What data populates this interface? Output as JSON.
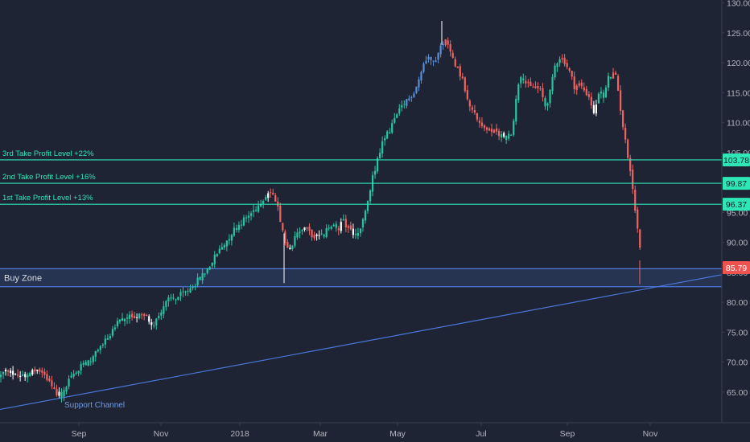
{
  "chart_data": {
    "type": "candlestick",
    "title": "",
    "y_axis": {
      "side": "right",
      "ylim": [
        61,
        131
      ],
      "ticks": [
        65,
        70,
        75,
        80,
        85,
        90,
        95,
        100,
        105,
        110,
        115,
        120,
        125,
        130
      ]
    },
    "x_axis": {
      "tick_labels": [
        "Sep",
        "Nov",
        "2018",
        "Mar",
        "May",
        "Jul",
        "Sep",
        "Nov"
      ]
    },
    "grid": false,
    "price_path": [
      [
        0,
        67.6
      ],
      [
        6,
        68.4
      ],
      [
        14,
        68.2
      ],
      [
        24,
        67.8
      ],
      [
        34,
        68.0
      ],
      [
        44,
        68.8
      ],
      [
        54,
        68.0
      ],
      [
        62,
        66.4
      ],
      [
        70,
        64.8
      ],
      [
        78,
        64.5
      ],
      [
        86,
        67.2
      ],
      [
        96,
        68.6
      ],
      [
        106,
        69.8
      ],
      [
        116,
        70.8
      ],
      [
        126,
        72.8
      ],
      [
        136,
        74.6
      ],
      [
        146,
        76.4
      ],
      [
        156,
        77.4
      ],
      [
        166,
        77.8
      ],
      [
        176,
        77.6
      ],
      [
        184,
        77.4
      ],
      [
        190,
        76.4
      ],
      [
        196,
        77.4
      ],
      [
        202,
        79.2
      ],
      [
        210,
        80.4
      ],
      [
        220,
        80.8
      ],
      [
        230,
        81.6
      ],
      [
        240,
        82.8
      ],
      [
        250,
        84.2
      ],
      [
        260,
        86.0
      ],
      [
        270,
        88.2
      ],
      [
        280,
        90.0
      ],
      [
        290,
        92.0
      ],
      [
        300,
        93.4
      ],
      [
        310,
        94.6
      ],
      [
        320,
        96.0
      ],
      [
        328,
        97.6
      ],
      [
        334,
        98.4
      ],
      [
        340,
        97.6
      ],
      [
        346,
        95.2
      ],
      [
        350,
        92.2
      ],
      [
        356,
        89.2
      ],
      [
        360,
        88.6
      ],
      [
        366,
        90.4
      ],
      [
        372,
        91.8
      ],
      [
        378,
        92.6
      ],
      [
        386,
        91.4
      ],
      [
        394,
        90.6
      ],
      [
        402,
        91.2
      ],
      [
        410,
        92.8
      ],
      [
        418,
        92.2
      ],
      [
        426,
        93.4
      ],
      [
        434,
        92.4
      ],
      [
        440,
        91.2
      ],
      [
        446,
        91.6
      ],
      [
        452,
        93.8
      ],
      [
        458,
        97.4
      ],
      [
        464,
        101.4
      ],
      [
        470,
        104.2
      ],
      [
        476,
        106.8
      ],
      [
        484,
        108.8
      ],
      [
        492,
        111.0
      ],
      [
        500,
        112.6
      ],
      [
        508,
        114.0
      ],
      [
        516,
        115.6
      ],
      [
        522,
        117.8
      ],
      [
        528,
        120.4
      ],
      [
        534,
        121.0
      ],
      [
        540,
        120.6
      ],
      [
        546,
        121.8
      ],
      [
        552,
        124.2
      ],
      [
        558,
        122.2
      ],
      [
        564,
        120.4
      ],
      [
        570,
        118.8
      ],
      [
        576,
        116.6
      ],
      [
        582,
        113.8
      ],
      [
        588,
        111.8
      ],
      [
        594,
        110.2
      ],
      [
        600,
        109.6
      ],
      [
        606,
        108.8
      ],
      [
        612,
        108.4
      ],
      [
        618,
        108.2
      ],
      [
        624,
        107.8
      ],
      [
        630,
        107.6
      ],
      [
        636,
        108.6
      ],
      [
        640,
        112.4
      ],
      [
        644,
        116.6
      ],
      [
        648,
        118.4
      ],
      [
        654,
        116.4
      ],
      [
        660,
        115.8
      ],
      [
        666,
        116.0
      ],
      [
        672,
        115.2
      ],
      [
        678,
        112.6
      ],
      [
        684,
        115.2
      ],
      [
        690,
        119.8
      ],
      [
        696,
        121.0
      ],
      [
        702,
        120.2
      ],
      [
        708,
        118.4
      ],
      [
        714,
        116.0
      ],
      [
        720,
        116.4
      ],
      [
        726,
        115.4
      ],
      [
        732,
        114.4
      ],
      [
        738,
        111.6
      ],
      [
        744,
        115.4
      ],
      [
        750,
        114.2
      ],
      [
        756,
        117.4
      ],
      [
        762,
        118.0
      ],
      [
        766,
        117.4
      ],
      [
        770,
        113.4
      ],
      [
        774,
        109.6
      ],
      [
        778,
        106.0
      ],
      [
        782,
        103.4
      ],
      [
        786,
        99.4
      ],
      [
        790,
        94.4
      ],
      [
        794,
        90.6
      ],
      [
        798,
        86.4
      ]
    ],
    "horizontal_levels": [
      {
        "name": "3rd Take Profit Level +22%",
        "value": 103.78,
        "label": "103.78",
        "color": "#2ee6b6"
      },
      {
        "name": "2nd Take Profit Level +16%",
        "value": 99.87,
        "label": "99.87",
        "color": "#2ee6b6"
      },
      {
        "name": "1st Take Profit Level +13%",
        "value": 96.37,
        "label": "96.37",
        "color": "#2ee6b6"
      }
    ],
    "zone": {
      "name": "Buy Zone",
      "from": 82.6,
      "to": 85.6,
      "color": "#4a78d8"
    },
    "last_price": {
      "value": 85.79,
      "label": "85.79",
      "color": "#ef5350"
    },
    "trendline": {
      "name": "Support Channel",
      "points": [
        [
          0,
          62.1
        ],
        [
          897,
          84.6
        ]
      ],
      "color": "#4a78d8"
    },
    "colors": {
      "up": "#26c6a2",
      "down": "#ef6461",
      "neutral": "#ffffff",
      "blue": "#5b8fd6",
      "background": "#1f2434",
      "text": "#b2b5be"
    }
  }
}
